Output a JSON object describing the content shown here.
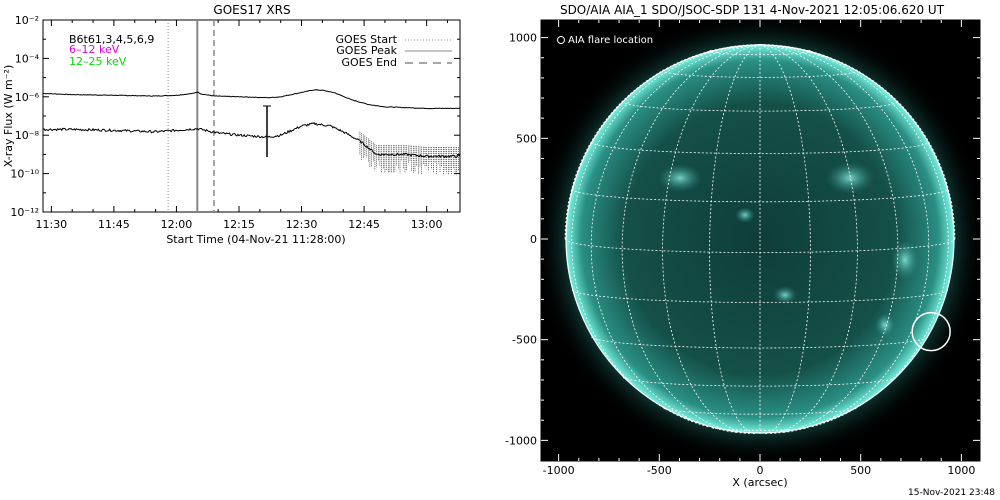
{
  "chart_data": [
    {
      "type": "line",
      "title": "GOES17 XRS",
      "xlabel": "Start Time (04-Nov-21 11:28:00)",
      "ylabel": "X-ray Flux (W m⁻²)",
      "x_ticks": [
        "11:30",
        "11:45",
        "12:00",
        "12:15",
        "12:30",
        "12:45",
        "13:00"
      ],
      "y_ticks": [
        "10⁻²",
        "10⁻⁴",
        "10⁻⁶",
        "10⁻⁸",
        "10⁻¹⁰",
        "10⁻¹²"
      ],
      "y_scale": "log",
      "xlim": [
        "11:28",
        "13:08"
      ],
      "ylim": [
        1e-12,
        0.01
      ],
      "detector_label": "B6t61,3,4,5,6,9",
      "band_labels": [
        "6–12 keV",
        "12–25 keV"
      ],
      "band_colors": [
        "#e000e0",
        "#00dd00"
      ],
      "legend": [
        "GOES Start",
        "GOES Peak",
        "GOES End"
      ],
      "legend_placement": "top-right",
      "event_lines": {
        "start": "11:58",
        "peak": "12:05",
        "end": "12:09"
      },
      "series": [
        {
          "x": [
            "11:28",
            "11:35",
            "11:45",
            "11:55",
            "12:00",
            "12:04",
            "12:05",
            "12:06",
            "12:09",
            "12:15",
            "12:22",
            "12:25",
            "12:30",
            "12:33",
            "12:35",
            "12:38",
            "12:42",
            "12:46",
            "12:50",
            "13:00",
            "13:08"
          ],
          "values": [
            1.5e-06,
            1.3e-06,
            1.2e-06,
            1.1e-06,
            1.2e-06,
            1.5e-06,
            1.8e-06,
            1.4e-06,
            1.1e-06,
            1e-06,
            9e-07,
            1e-06,
            1.7e-06,
            2.3e-06,
            2.2e-06,
            1.6e-06,
            7e-07,
            4e-07,
            3e-07,
            2.5e-07,
            2.5e-07
          ]
        },
        {
          "x": [
            "11:28",
            "11:35",
            "11:45",
            "11:55",
            "12:00",
            "12:05",
            "12:10",
            "12:15",
            "12:22",
            "12:25",
            "12:30",
            "12:33",
            "12:37",
            "12:40",
            "12:44",
            "12:48",
            "12:55",
            "13:00",
            "13:08"
          ],
          "values": [
            2e-08,
            2e-08,
            1.8e-08,
            1.5e-08,
            1.8e-08,
            2.2e-08,
            1.3e-08,
            1e-08,
            8e-09,
            1e-08,
            3e-08,
            4e-08,
            3e-08,
            1.5e-08,
            5e-09,
            1e-09,
            1e-09,
            8e-10,
            8e-10
          ]
        }
      ]
    },
    {
      "type": "scatter",
      "title": "SDO/AIA AIA_1 SDO/JSOC-SDP 131  4-Nov-2021 12:05:06.620 UT",
      "xlabel": "X (arcsec)",
      "ylabel": "",
      "x_ticks": [
        "-1000",
        "-500",
        "0",
        "500",
        "1000"
      ],
      "y_ticks": [
        "1000",
        "500",
        "0",
        "-500",
        "-1000"
      ],
      "xlim": [
        -1090,
        1090
      ],
      "ylim": [
        -1090,
        1090
      ],
      "legend": [
        "AIA flare location"
      ],
      "legend_placement": "top-left",
      "flare_location": {
        "x": 850,
        "y": -460
      },
      "solar_radius_arcsec": 968,
      "disk_color": "#1f7a72",
      "limb_color": "#7fffe8"
    }
  ],
  "footer": {
    "timestamp": "15-Nov-2021 23:48"
  }
}
